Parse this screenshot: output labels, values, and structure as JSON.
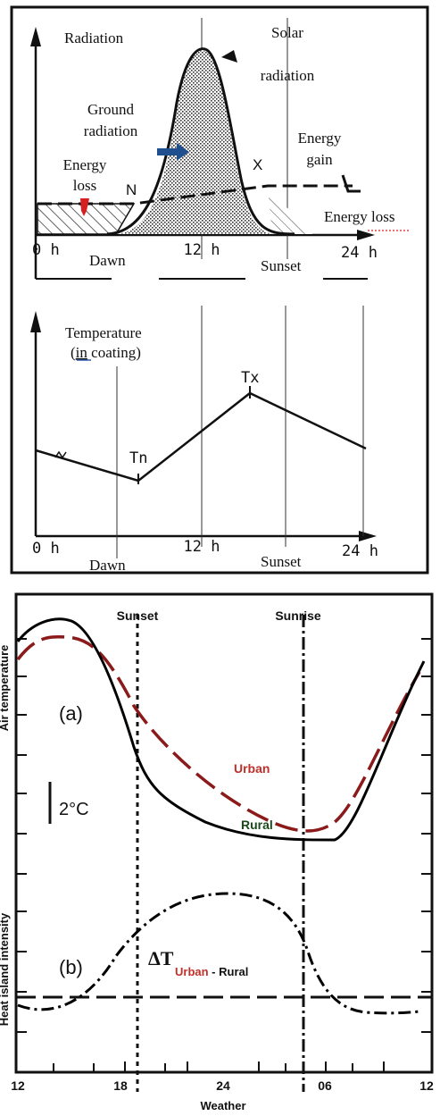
{
  "top_figure": {
    "panel1": {
      "labels": {
        "radiation": "Radiation",
        "solar_radiation_1": "Solar",
        "solar_radiation_2": "radiation",
        "ground_radiation_1": "Ground",
        "ground_radiation_2": "radiation",
        "energy_gain_1": "Energy",
        "energy_gain_2": "gain",
        "energy_loss_left_1": "Energy",
        "energy_loss_left_2": "loss",
        "energy_loss_right": "Energy loss",
        "n_marker": "N",
        "x_marker": "X",
        "l_marker": "L",
        "tick_0h": "0 h",
        "tick_12h": "12 h",
        "tick_24h": "24 h",
        "dawn": "Dawn",
        "sunset": "Sunset"
      }
    },
    "panel2": {
      "labels": {
        "temperature": "Temperature",
        "in_coating_prefix": "(",
        "in_coating_in": "in",
        "in_coating_rest": " coating)",
        "tn": "Tn",
        "tx": "Tx",
        "tick_0h": "0 h",
        "tick_12h": "12 h",
        "tick_24h": "24 h",
        "dawn": "Dawn",
        "sunset": "Sunset"
      }
    },
    "colors": {
      "frame": "#111111",
      "red_marker": "#d62020",
      "blue_arrow": "#1f4f8f",
      "link_underline": "#3355aa"
    }
  },
  "bottom_figure": {
    "y_axis_label_top": "Air temperature",
    "y_axis_label_bottom": "Heat island intensity",
    "x_axis_label": "Weather",
    "x_ticks": [
      "12",
      "18",
      "24",
      "06",
      "12"
    ],
    "sunset_label": "Sunset",
    "sunrise_label": "Sunrise",
    "label_a": "(a)",
    "label_b": "(b)",
    "scale_label": "2°C",
    "urban_label": "Urban",
    "rural_label": "Rural",
    "delta_symbol": "ΔT",
    "delta_urban": "Urban",
    "delta_dash": " - ",
    "delta_rural": "Rural",
    "colors": {
      "urban": "#8b1a1a",
      "urban_text": "#c0302a",
      "rural_text": "#1a4a1a",
      "lines": "#000000"
    }
  }
}
